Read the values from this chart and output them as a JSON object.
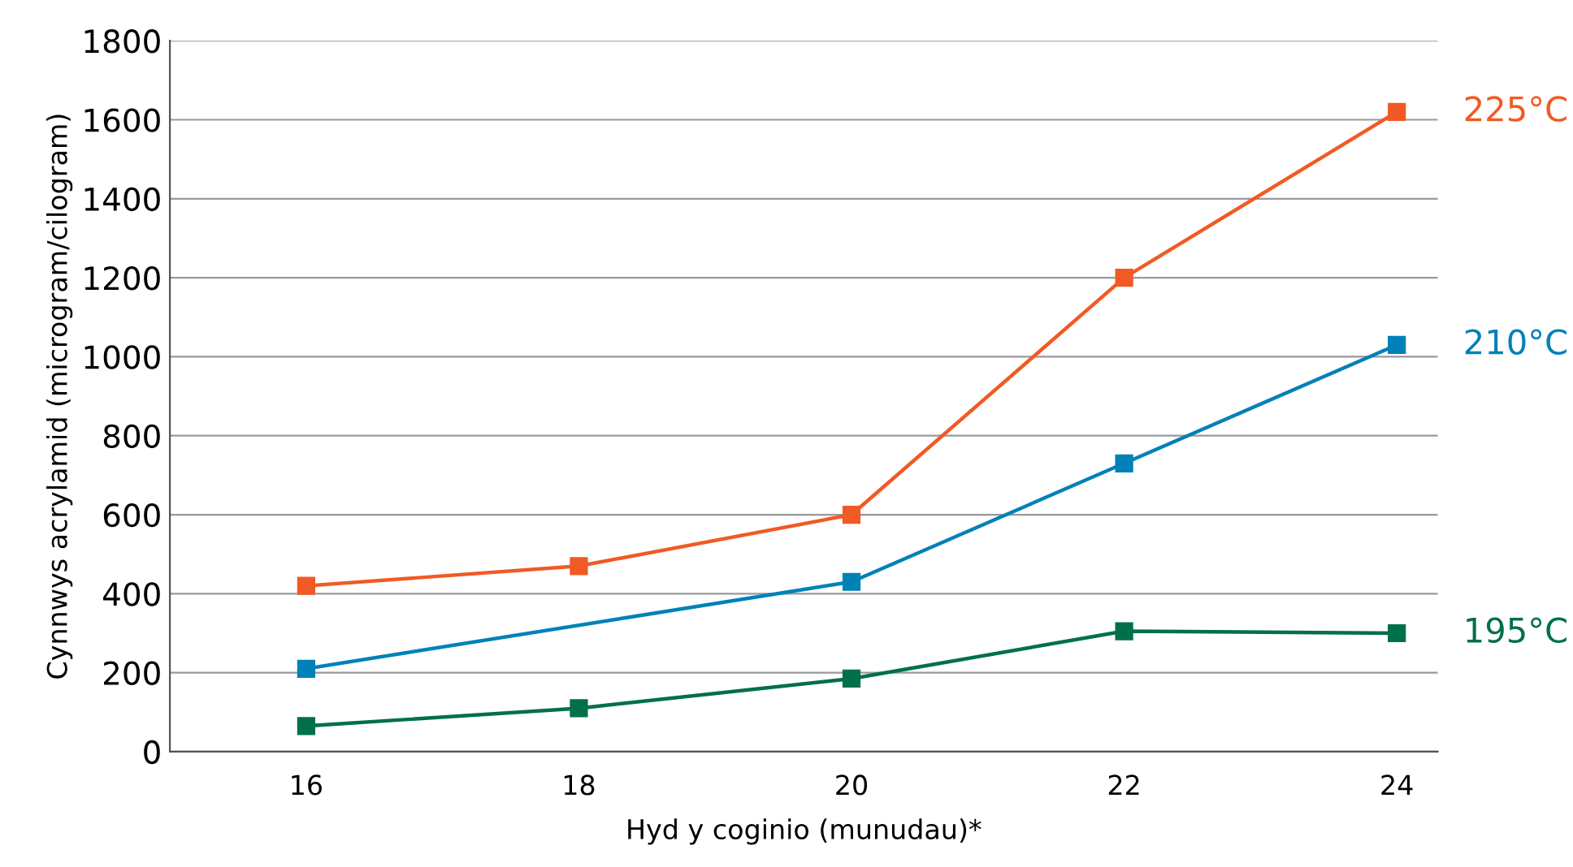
{
  "chart_data": {
    "type": "line",
    "xlabel": "Hyd y coginio (munudau)*",
    "ylabel": "Cynnwys acrylamid (microgram/cilogram)",
    "xlim": [
      15,
      24.3
    ],
    "xticks": [
      16,
      18,
      20,
      22,
      24
    ],
    "ylim": [
      0,
      1800
    ],
    "yticks": [
      0,
      200,
      400,
      600,
      800,
      1000,
      1200,
      1400,
      1600,
      1800
    ],
    "grid": "y",
    "legend": false,
    "marker": "square",
    "line_style": "solid",
    "series": [
      {
        "name": "225°C",
        "color": "#f15a24",
        "x": [
          16,
          18,
          20,
          22,
          24
        ],
        "values": [
          420,
          470,
          600,
          1200,
          1620
        ]
      },
      {
        "name": "210°C",
        "color": "#0081b8",
        "x": [
          16,
          20,
          22,
          24
        ],
        "values": [
          210,
          430,
          730,
          1030
        ]
      },
      {
        "name": "195°C",
        "color": "#00704a",
        "x": [
          16,
          18,
          20,
          22,
          24
        ],
        "values": [
          65,
          110,
          185,
          305,
          300
        ]
      }
    ]
  }
}
